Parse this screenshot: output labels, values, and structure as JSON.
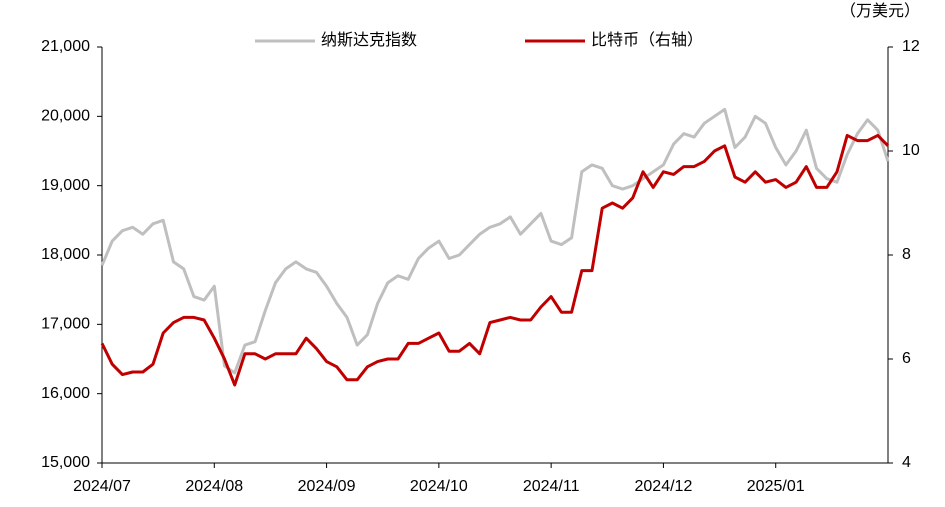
{
  "chart_data": {
    "type": "line",
    "y2_unit_label": "（万美元）",
    "categories": [
      "2024/07",
      null,
      null,
      null,
      null,
      null,
      null,
      null,
      null,
      null,
      null,
      "2024/08",
      null,
      null,
      null,
      null,
      null,
      null,
      null,
      null,
      null,
      null,
      "2024/09",
      null,
      null,
      null,
      null,
      null,
      null,
      null,
      null,
      null,
      null,
      "2024/10",
      null,
      null,
      null,
      null,
      null,
      null,
      null,
      null,
      null,
      null,
      "2024/11",
      null,
      null,
      null,
      null,
      null,
      null,
      null,
      null,
      null,
      null,
      "2024/12",
      null,
      null,
      null,
      null,
      null,
      null,
      null,
      null,
      null,
      null,
      "2025/01",
      null,
      null,
      null,
      null,
      null,
      null,
      null,
      null,
      null,
      null,
      null
    ],
    "series": [
      {
        "name": "纳斯达克指数",
        "color": "#bfbfbf",
        "values": [
          17850,
          18200,
          18350,
          18400,
          18300,
          18450,
          18500,
          17900,
          17800,
          17400,
          17350,
          17550,
          16400,
          16300,
          16700,
          16750,
          17200,
          17600,
          17800,
          17900,
          17800,
          17750,
          17550,
          17300,
          17100,
          16700,
          16850,
          17300,
          17600,
          17700,
          17650,
          17950,
          18100,
          18200,
          17950,
          18000,
          18150,
          18300,
          18400,
          18450,
          18550,
          18300,
          18450,
          18600,
          18200,
          18150,
          18250,
          19200,
          19300,
          19250,
          19000,
          18950,
          19000,
          19100,
          19200,
          19300,
          19600,
          19750,
          19700,
          19900,
          20000,
          20100,
          19550,
          19700,
          20000,
          19900,
          19550,
          19300,
          19500,
          19800,
          19250,
          19100,
          19050,
          19450,
          19750,
          19950,
          19800,
          19350
        ]
      },
      {
        "name": "比特币（右轴）",
        "color": "#c00000",
        "axis": "y2",
        "values": [
          6.3,
          5.9,
          5.7,
          5.75,
          5.75,
          5.9,
          6.5,
          6.7,
          6.8,
          6.8,
          6.75,
          6.4,
          6.0,
          5.5,
          6.1,
          6.1,
          6.0,
          6.1,
          6.1,
          6.1,
          6.4,
          6.2,
          5.95,
          5.85,
          5.6,
          5.6,
          5.85,
          5.95,
          6.0,
          6.0,
          6.3,
          6.3,
          6.4,
          6.5,
          6.15,
          6.15,
          6.3,
          6.1,
          6.7,
          6.75,
          6.8,
          6.75,
          6.75,
          7.0,
          7.2,
          6.9,
          6.9,
          7.7,
          7.7,
          8.9,
          9.0,
          8.9,
          9.1,
          9.6,
          9.3,
          9.6,
          9.55,
          9.7,
          9.7,
          9.8,
          10.0,
          10.1,
          9.5,
          9.4,
          9.6,
          9.4,
          9.45,
          9.3,
          9.4,
          9.7,
          9.3,
          9.3,
          9.6,
          10.3,
          10.2,
          10.2,
          10.3,
          10.1
        ]
      }
    ],
    "ylim": [
      15000,
      21000
    ],
    "yticks": [
      {
        "value": 15000,
        "label": "15,000"
      },
      {
        "value": 16000,
        "label": "16,000"
      },
      {
        "value": 17000,
        "label": "17,000"
      },
      {
        "value": 18000,
        "label": "18,000"
      },
      {
        "value": 19000,
        "label": "19,000"
      },
      {
        "value": 20000,
        "label": "20,000"
      },
      {
        "value": 21000,
        "label": "21,000"
      }
    ],
    "y2lim": [
      4,
      12
    ],
    "y2ticks": [
      4,
      6,
      8,
      10,
      12
    ],
    "grid": false,
    "legend": "top"
  }
}
